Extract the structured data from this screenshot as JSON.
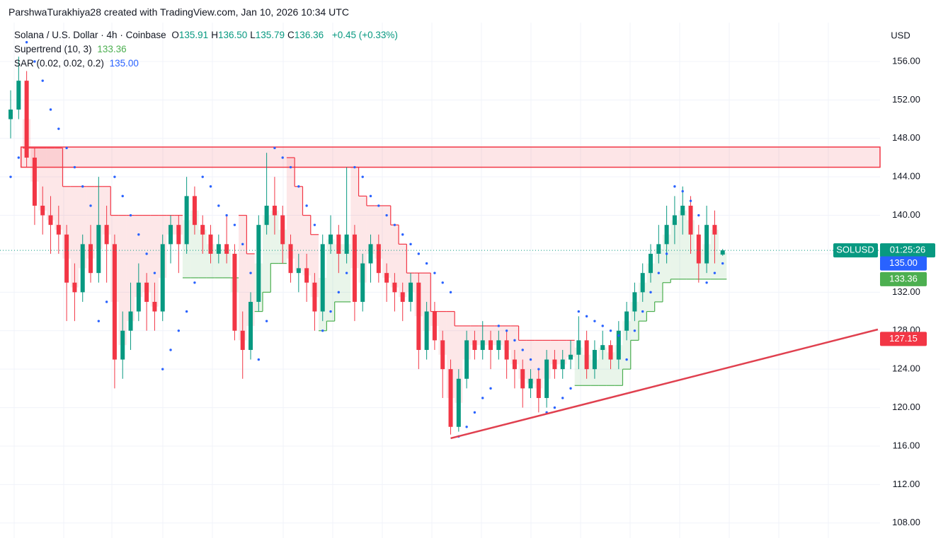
{
  "header": "ParshwaTurakhiya28 created with TradingView.com, Jan 10, 2026 10:34 UTC",
  "chart_data": {
    "type": "candlestick",
    "symbol": "Solana / U.S. Dollar · 4h · Coinbase",
    "ohlc_legend": [
      {
        "key": "O",
        "value": 135.91,
        "label": "135.91"
      },
      {
        "key": "H",
        "value": 136.5,
        "label": "136.50"
      },
      {
        "key": "L",
        "value": 135.79,
        "label": "135.79"
      },
      {
        "key": "C",
        "value": 136.36,
        "label": "136.36"
      }
    ],
    "change": "+0.45 (+0.33%)",
    "currency": "USD",
    "ticker": "SOLUSD",
    "countdown": "01:25:26",
    "up_color": "#089981",
    "down_color": "#f23645",
    "xlim": [
      -1.33,
      108.67
    ],
    "ylim": [
      106.44,
      160.04
    ],
    "yticks": [
      {
        "value": 108,
        "label": "108.00"
      },
      {
        "value": 112,
        "label": "112.00"
      },
      {
        "value": 116,
        "label": "116.00"
      },
      {
        "value": 120,
        "label": "120.00"
      },
      {
        "value": 124,
        "label": "124.00"
      },
      {
        "value": 128,
        "label": "128.00"
      },
      {
        "value": 132,
        "label": "132.00"
      },
      {
        "value": 136,
        "label": "136.00"
      },
      {
        "value": 140,
        "label": "140.00"
      },
      {
        "value": 144,
        "label": "144.00"
      },
      {
        "value": 148,
        "label": "148.00"
      },
      {
        "value": 152,
        "label": "152.00"
      },
      {
        "value": 156,
        "label": "156.00"
      }
    ],
    "grid": true,
    "candles": {
      "open": [
        150,
        151,
        154,
        146,
        141,
        140,
        139,
        138,
        133,
        132,
        137,
        134,
        139,
        137,
        125,
        128,
        130,
        133,
        131,
        130,
        137,
        139,
        137,
        142,
        139,
        138,
        136,
        137,
        136,
        128,
        126,
        131,
        139,
        141,
        140,
        137,
        134,
        134.5,
        133,
        130,
        137,
        138,
        136,
        138,
        131,
        135,
        137,
        134,
        133,
        132,
        131,
        133,
        126,
        130,
        127,
        124,
        118,
        123,
        127,
        126,
        127,
        126,
        127,
        125,
        124,
        122,
        123,
        121,
        125,
        124,
        125,
        125.5,
        127,
        124,
        126,
        126.5,
        125,
        128,
        130,
        132,
        134,
        136,
        137,
        139,
        140,
        141,
        138,
        135,
        139,
        135.91
      ],
      "high": [
        153,
        156.5,
        155,
        147,
        143,
        142,
        141,
        139,
        135,
        138,
        139,
        144,
        141,
        138,
        130,
        133,
        135,
        134,
        133,
        138,
        140,
        140,
        144,
        143,
        140,
        139,
        138,
        140,
        137,
        130,
        132,
        140,
        146.5,
        144,
        141,
        138,
        136,
        136,
        134,
        138,
        140,
        139,
        145,
        139,
        136,
        138,
        138,
        135,
        134,
        133,
        134,
        134,
        131,
        131,
        128,
        125,
        124,
        128,
        128,
        129,
        128,
        128,
        128,
        126,
        125,
        124,
        124,
        126,
        126,
        126,
        127,
        129.5,
        128,
        127,
        128,
        127,
        129,
        131,
        133,
        135,
        137,
        139,
        141,
        142,
        143,
        142,
        139,
        141,
        140.5,
        136.5
      ],
      "low": [
        148,
        150,
        145,
        139,
        138,
        136,
        136,
        129,
        129,
        131,
        133,
        133,
        133,
        122,
        123,
        126,
        129,
        128,
        128,
        129,
        135,
        134,
        136,
        138,
        136,
        135,
        135,
        135,
        127,
        123,
        125,
        130,
        138,
        138,
        135,
        133,
        132,
        131,
        128,
        129,
        136,
        134,
        135,
        129,
        130,
        133,
        133,
        131,
        130,
        129,
        130,
        124,
        125,
        126,
        121,
        117.2,
        117.5,
        122,
        125,
        125,
        124,
        125,
        123,
        122,
        120,
        121,
        119.5,
        120,
        123,
        123,
        124,
        124,
        123,
        123,
        125,
        124,
        124,
        127,
        129,
        131,
        133,
        135,
        135,
        137,
        138,
        136,
        133,
        134,
        135,
        135.79
      ],
      "close": [
        151,
        154,
        146,
        141,
        140,
        139,
        138,
        133,
        132,
        137,
        134,
        139,
        137,
        125,
        128,
        130,
        133,
        131,
        130,
        137,
        139,
        137,
        142,
        139,
        138,
        136,
        137,
        136,
        128,
        126,
        131,
        139,
        141,
        140,
        137,
        134,
        134.5,
        133,
        130,
        137,
        138,
        136,
        138,
        131,
        135,
        137,
        134,
        133,
        132,
        131,
        133,
        126,
        130,
        127,
        124,
        118,
        123,
        127,
        126,
        127,
        126,
        127,
        125,
        124,
        122,
        123,
        121,
        125,
        124,
        125,
        125.5,
        127,
        124,
        126,
        126.5,
        125,
        128,
        130,
        132,
        134,
        136,
        137,
        139,
        140,
        141,
        138,
        135,
        139,
        138,
        136.36
      ]
    },
    "supertrend": {
      "name": "Supertrend (10, 3)",
      "up_color": "#4caf50",
      "down_color": "#f23645",
      "up": [
        null,
        null,
        null,
        null,
        null,
        null,
        null,
        null,
        null,
        null,
        null,
        null,
        null,
        null,
        null,
        null,
        null,
        null,
        null,
        null,
        null,
        null,
        133.5,
        133.5,
        133.5,
        133.5,
        133.5,
        133.5,
        133.5,
        null,
        null,
        130,
        132,
        135,
        135,
        null,
        null,
        null,
        null,
        128,
        129,
        131,
        131,
        null,
        null,
        null,
        null,
        null,
        null,
        null,
        null,
        null,
        null,
        null,
        null,
        null,
        null,
        null,
        null,
        null,
        null,
        null,
        null,
        null,
        null,
        null,
        null,
        null,
        null,
        null,
        null,
        122.3,
        122.3,
        122.3,
        122.3,
        122.3,
        122.3,
        124,
        127,
        129,
        130,
        131,
        133,
        133.36,
        133.36,
        133.36,
        133.36,
        133.36,
        133.36,
        133.36
      ],
      "down": [
        null,
        null,
        147,
        147,
        147,
        147,
        147,
        143,
        143,
        143,
        143,
        143,
        143,
        140,
        140,
        140,
        140,
        140,
        140,
        140,
        140,
        140,
        null,
        null,
        null,
        null,
        null,
        null,
        null,
        140,
        136,
        null,
        null,
        null,
        null,
        146,
        143,
        140,
        138,
        null,
        null,
        null,
        null,
        145,
        142,
        141,
        141,
        141,
        139,
        137,
        134,
        134,
        134,
        130,
        130,
        130,
        128.5,
        128.5,
        128.5,
        128.5,
        128.5,
        128.5,
        128.5,
        128.5,
        127,
        127,
        127,
        127,
        127,
        127,
        127,
        null,
        null,
        null,
        null,
        null,
        null,
        null,
        null,
        null,
        null,
        null,
        null,
        null,
        null,
        null,
        null,
        null,
        null,
        null
      ],
      "legend_value": 133.36
    },
    "sar": {
      "name": "SAR (0.02, 0.02, 0.2)",
      "color": "#2962ff",
      "values": [
        144,
        146,
        158,
        156,
        154,
        151,
        149,
        147,
        145,
        143,
        141,
        129,
        131,
        144,
        142,
        140,
        138,
        136,
        134,
        124,
        126,
        128,
        130,
        133,
        144,
        143,
        141,
        140,
        139,
        137,
        134,
        125,
        129,
        147,
        146,
        145,
        143,
        141,
        139,
        128,
        130,
        132,
        134,
        145,
        144,
        142,
        141,
        140,
        139,
        138,
        137,
        136,
        135,
        134,
        133,
        132,
        117,
        118,
        119.5,
        121,
        122,
        128.5,
        128,
        127,
        126,
        125,
        124,
        119.5,
        120,
        121,
        122,
        130,
        129.5,
        129,
        128.5,
        128,
        127.5,
        125,
        128,
        130,
        132,
        134,
        136,
        143,
        142.5,
        141.5,
        140,
        133,
        134,
        135
      ],
      "legend_value": {
        "value": 135,
        "label": "135.00"
      }
    },
    "resistance_zone": {
      "x0": 1.3,
      "y": [
        145,
        147.1
      ],
      "color": "#f23645"
    },
    "trendline": {
      "x": [
        55,
        108.4
      ],
      "y": [
        116.81,
        128.13
      ],
      "color": "#e0404f"
    },
    "price_labels": [
      {
        "value": 135,
        "label": "135.00",
        "color": "#2962ff"
      },
      {
        "value": 133.36,
        "label": "133.36",
        "color": "#4caf50"
      },
      {
        "value": 127.15,
        "label": "127.15",
        "color": "#f23645"
      }
    ]
  }
}
